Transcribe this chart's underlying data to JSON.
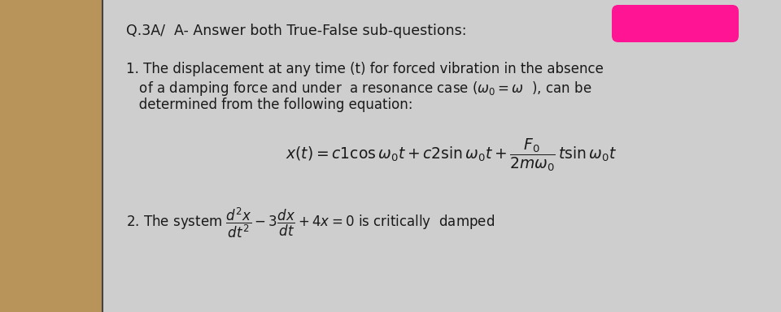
{
  "bg_color": "#b8935a",
  "paper_color": "#d4d4d4",
  "text_color": "#1a1a1a",
  "pink_color": "#FF1493",
  "title": "Q.3A/  A- Answer both True-False sub-questions:",
  "line1": "1. The displacement at any time (t) for forced vibration in the absence",
  "line2": "   of a damping force and under  a resonance case ($\\omega_0 = \\omega$  ), can be",
  "line3": "   determined from the following equation:",
  "equation": "$x(t) = c1\\cos\\omega_0 t + c2\\sin\\omega_0 t + \\dfrac{F_0}{2m\\omega_0}\\,t\\sin\\omega_0 t$",
  "line4": "2. The system $\\dfrac{d^2x}{dt^2} - 3\\dfrac{dx}{dt} + 4x = 0$ is critically  damped",
  "title_fs": 12.5,
  "body_fs": 12.0,
  "eq_fs": 13.5
}
